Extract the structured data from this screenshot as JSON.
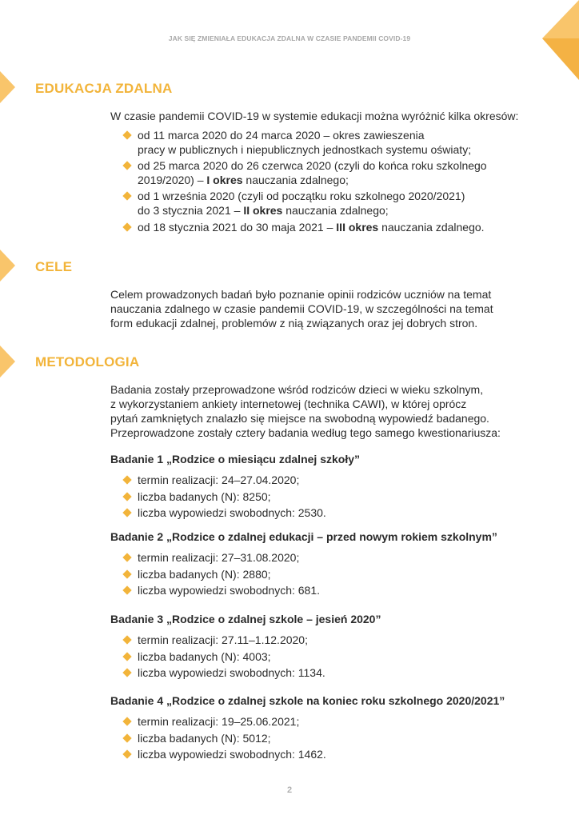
{
  "header": {
    "running_title": "JAK SIĘ ZMIENIAŁA EDUKACJA ZDALNA W CZASIE PANDEMII COVID-19"
  },
  "sections": {
    "edukacja": {
      "heading": "EDUKACJA ZDALNA",
      "intro": "W czasie pandemii COVID-19 w systemie edukacji można wyróżnić kilka okresów:",
      "items": [
        {
          "l1": "od 11 marca 2020 do 24 marca 2020 – okres zawieszenia",
          "l2_pre": "pracy w publicznych i niepublicznych jednostkach systemu oświaty;",
          "l2_bold": "",
          "l2_post": ""
        },
        {
          "l1": "od 25 marca 2020 do 26 czerwca 2020 (czyli do końca roku szkolnego",
          "l2_pre": "2019/2020) – ",
          "l2_bold": "I okres",
          "l2_post": " nauczania zdalnego;"
        },
        {
          "l1": "od 1 września 2020 (czyli od początku roku szkolnego 2020/2021)",
          "l2_pre": "do 3 stycznia 2021 – ",
          "l2_bold": "II okres",
          "l2_post": " nauczania zdalnego;"
        },
        {
          "l1_pre": "od 18 stycznia 2021 do 30 maja 2021 – ",
          "l1_bold": "III okres",
          "l1_post": " nauczania zdalnego."
        }
      ]
    },
    "cele": {
      "heading": "CELE",
      "lines": [
        "Celem prowadzonych badań było poznanie opinii rodziców uczniów na temat",
        "nauczania zdalnego w czasie pandemii COVID-19, w szczególności na temat",
        "form edukacji zdalnej, problemów z nią związanych oraz jej dobrych stron."
      ]
    },
    "metodologia": {
      "heading": "METODOLOGIA",
      "lines": [
        "Badania zostały przeprowadzone wśród rodziców dzieci w wieku szkolnym,",
        "z wykorzystaniem ankiety internetowej (technika CAWI), w której oprócz",
        "pytań zamkniętych znalazło się miejsce na swobodną wypowiedź badanego.",
        "Przeprowadzone zostały cztery badania według tego samego kwestionariusza:"
      ],
      "studies": [
        {
          "title": "Badanie 1 „Rodzice o miesiącu zdalnej szkoły”",
          "items": [
            "termin realizacji: 24–27.04.2020;",
            "liczba badanych (N): 8250;",
            "liczba wypowiedzi swobodnych: 2530."
          ]
        },
        {
          "title": "Badanie 2 „Rodzice o zdalnej edukacji – przed nowym rokiem szkolnym”",
          "items": [
            "termin realizacji: 27–31.08.2020;",
            "liczba badanych (N): 2880;",
            "liczba wypowiedzi swobodnych: 681."
          ]
        },
        {
          "title": "Badanie 3 „Rodzice o zdalnej szkole – jesień 2020”",
          "items": [
            "termin realizacji: 27.11–1.12.2020;",
            "liczba badanych (N): 4003;",
            "liczba wypowiedzi swobodnych: 1134."
          ]
        },
        {
          "title": "Badanie 4 „Rodzice o zdalnej szkole na koniec roku szkolnego 2020/2021”",
          "items": [
            "termin realizacji: 19–25.06.2021;",
            "liczba badanych (N): 5012;",
            "liczba wypowiedzi swobodnych: 1462."
          ]
        }
      ]
    }
  },
  "footer": {
    "page_number": "2"
  },
  "colors": {
    "accent": "#f2b43a",
    "accent_light": "#f9c56b"
  }
}
